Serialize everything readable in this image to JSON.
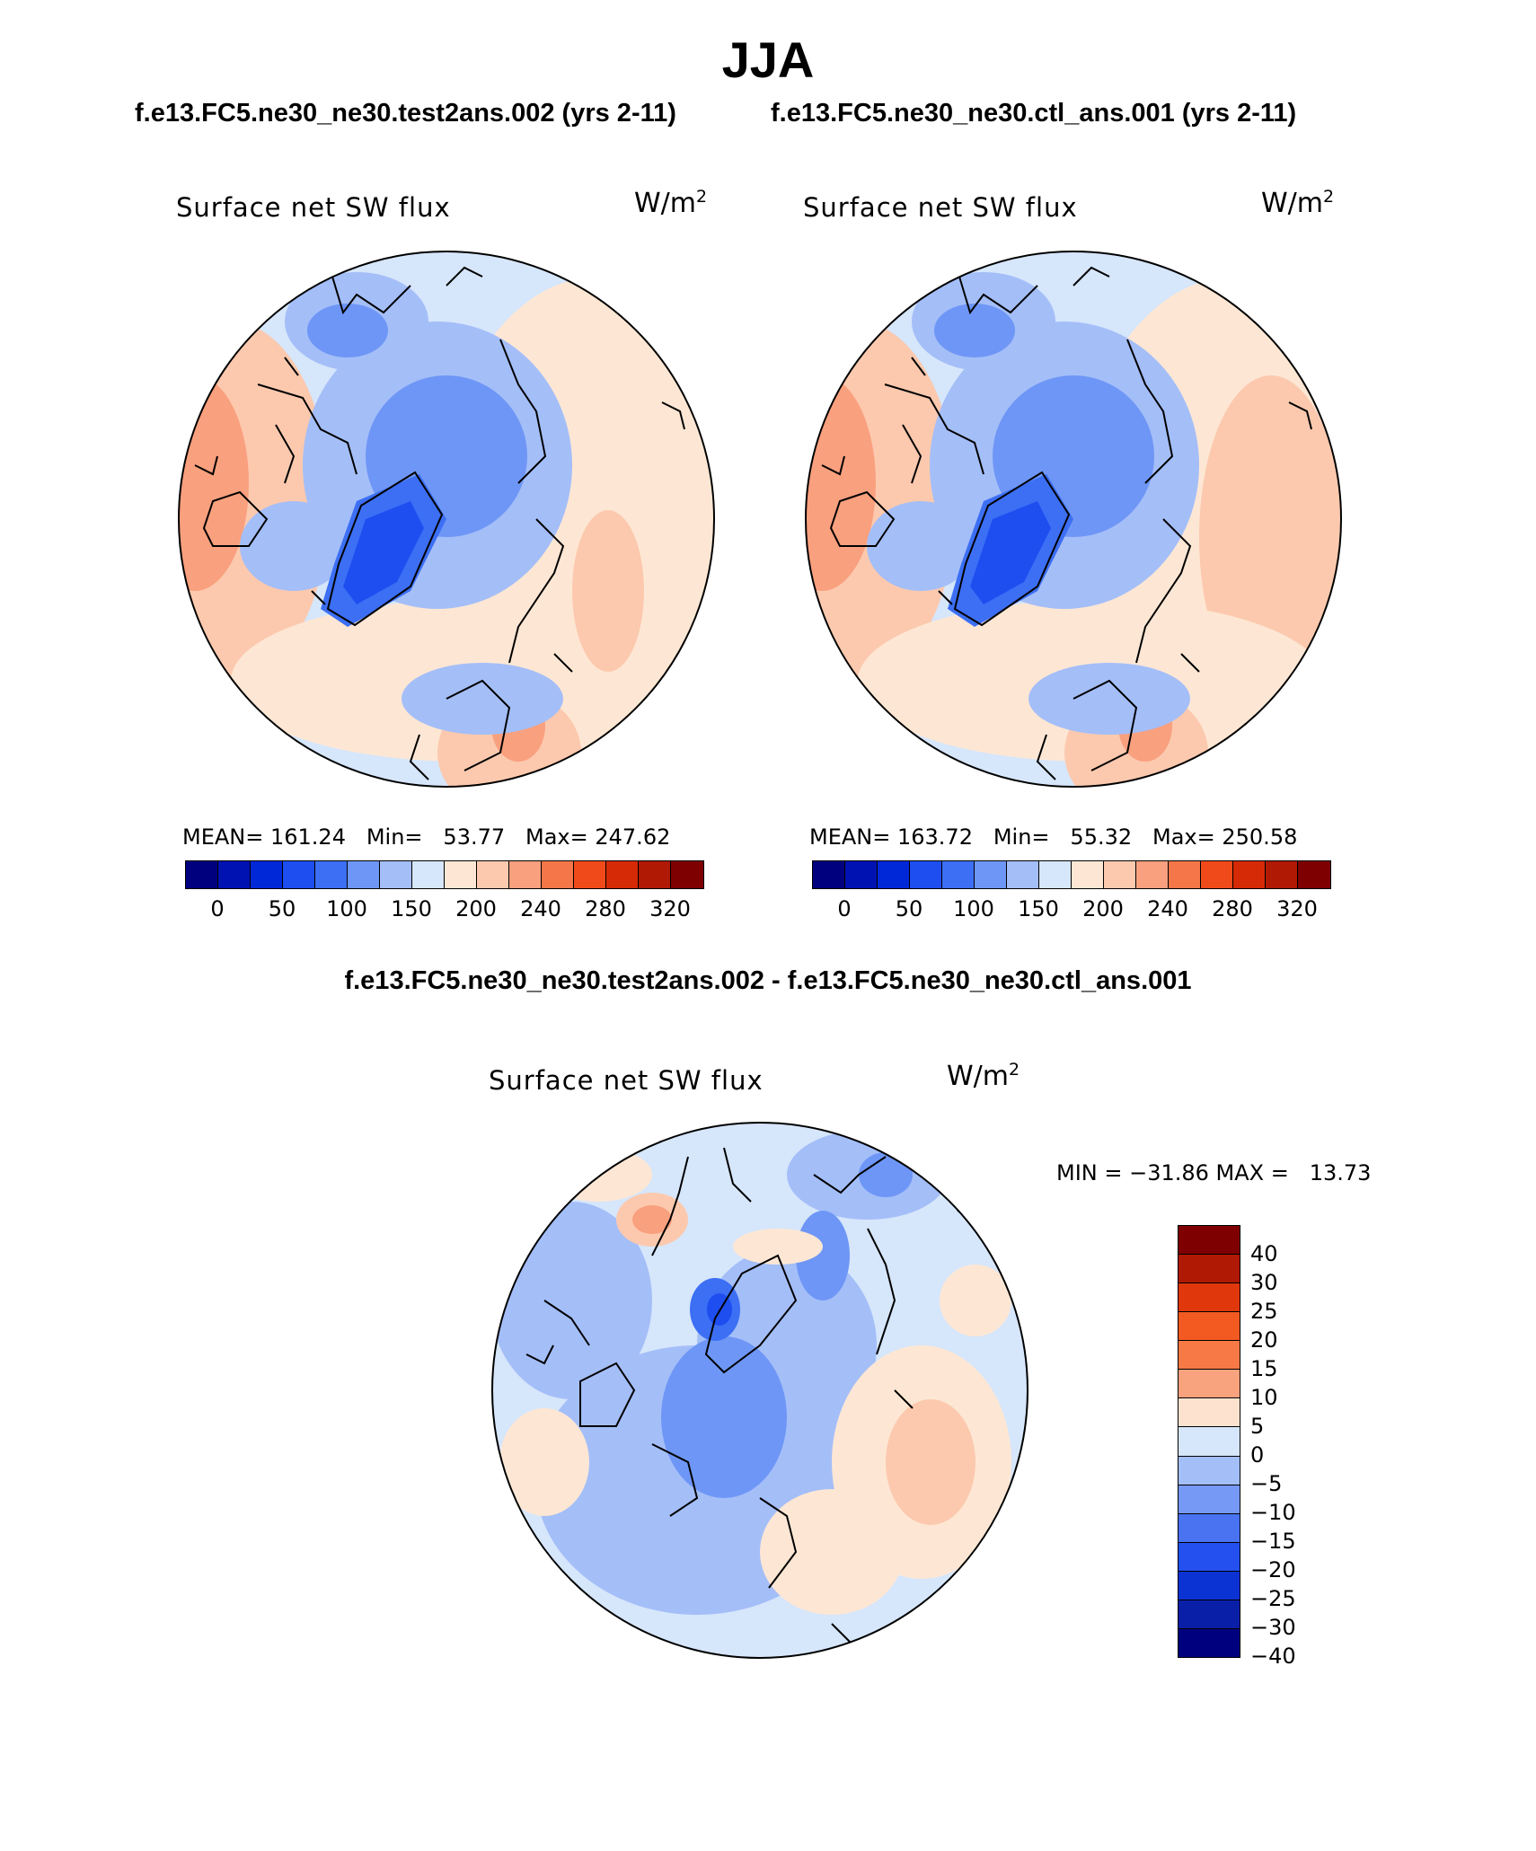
{
  "title": "JJA",
  "case_a": "f.e13.FC5.ne30_ne30.test2ans.002 (yrs 2-11)",
  "case_b": "f.e13.FC5.ne30_ne30.ctl_ans.001 (yrs 2-11)",
  "diff_title": "f.e13.FC5.ne30_ne30.test2ans.002 - f.e13.FC5.ne30_ne30.ctl_ans.001",
  "panels": [
    {
      "label": "Surface net SW flux",
      "units": "W/m",
      "units_exp": "2",
      "stats": "MEAN= 161.24   Min=   53.77   Max= 247.62"
    },
    {
      "label": "Surface net SW flux",
      "units": "W/m",
      "units_exp": "2",
      "stats": "MEAN= 163.72   Min=   55.32   Max= 250.58"
    },
    {
      "label": "Surface net SW flux",
      "units": "W/m",
      "units_exp": "2",
      "stats": "MIN = −31.86 MAX =   13.73"
    }
  ],
  "abs_colorbar": {
    "colors": [
      "#00007f",
      "#0012b2",
      "#0028d8",
      "#1e4ef0",
      "#3c6ff4",
      "#6e96f6",
      "#a4bef8",
      "#d6e6fb",
      "#fde7d4",
      "#fcc9ae",
      "#f9a07e",
      "#f57648",
      "#f04a1a",
      "#d62a06",
      "#b01904",
      "#7f0000"
    ],
    "labels": [
      "0",
      "50",
      "100",
      "150",
      "200",
      "240",
      "280",
      "320"
    ]
  },
  "diff_colorbar": {
    "colors": [
      "#7f0000",
      "#b01904",
      "#e0380c",
      "#f25a22",
      "#f77a46",
      "#f9a27e",
      "#fde3cf",
      "#d6e6fb",
      "#a4bef8",
      "#7799f6",
      "#4a73f2",
      "#2350ee",
      "#0b33d4",
      "#0a1fa8",
      "#00007f"
    ],
    "labels": [
      "40",
      "30",
      "25",
      "20",
      "15",
      "10",
      "5",
      "0",
      "−5",
      "−10",
      "−15",
      "−20",
      "−25",
      "−30",
      "−40"
    ]
  }
}
